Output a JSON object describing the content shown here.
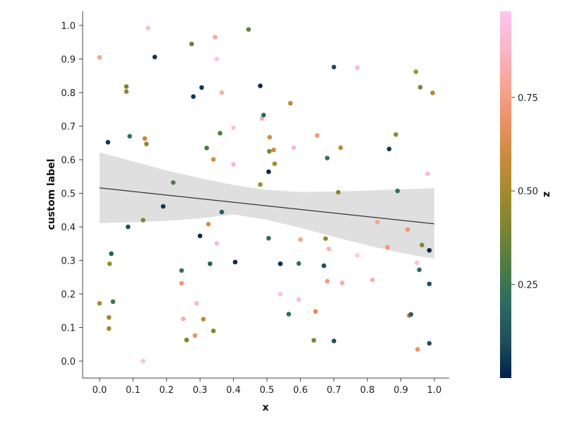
{
  "chart_data": {
    "type": "scatter",
    "xlabel": "x",
    "ylabel": "custom label",
    "xlim": [
      -0.05,
      1.05
    ],
    "ylim": [
      -0.05,
      1.04
    ],
    "xticks": [
      "0.0",
      "0.1",
      "0.2",
      "0.3",
      "0.4",
      "0.5",
      "0.6",
      "0.7",
      "0.8",
      "0.9",
      "1.0"
    ],
    "yticks": [
      "0.0",
      "0.1",
      "0.2",
      "0.3",
      "0.4",
      "0.5",
      "0.6",
      "0.7",
      "0.8",
      "0.9",
      "1.0"
    ],
    "colorbar": {
      "label": "z",
      "range": [
        0.0,
        0.98
      ],
      "ticks": [
        "0.25",
        "0.50",
        "0.75"
      ],
      "tick_values": [
        0.25,
        0.5,
        0.75
      ],
      "colormap": [
        "#00204c",
        "#1f4e5a",
        "#2c6a62",
        "#4b7b45",
        "#7a8334",
        "#9f8b2e",
        "#c88a3c",
        "#ec9166",
        "#f6a596",
        "#f9b7c6",
        "#fcc6f0"
      ]
    },
    "regression": {
      "line": [
        [
          0.0,
          0.516
        ],
        [
          1.0,
          0.409
        ]
      ],
      "ci_upper": [
        [
          0.0,
          0.622
        ],
        [
          0.1,
          0.595
        ],
        [
          0.2,
          0.568
        ],
        [
          0.3,
          0.545
        ],
        [
          0.4,
          0.525
        ],
        [
          0.5,
          0.51
        ],
        [
          0.6,
          0.504
        ],
        [
          0.7,
          0.505
        ],
        [
          0.8,
          0.508
        ],
        [
          0.9,
          0.512
        ],
        [
          1.0,
          0.515
        ]
      ],
      "ci_lower": [
        [
          0.0,
          0.411
        ],
        [
          0.1,
          0.414
        ],
        [
          0.2,
          0.418
        ],
        [
          0.3,
          0.425
        ],
        [
          0.4,
          0.437
        ],
        [
          0.5,
          0.421
        ],
        [
          0.6,
          0.397
        ],
        [
          0.7,
          0.37
        ],
        [
          0.8,
          0.345
        ],
        [
          0.9,
          0.323
        ],
        [
          1.0,
          0.305
        ]
      ]
    },
    "points": [
      [
        0.0,
        0.905,
        0.78
      ],
      [
        0.0,
        0.172,
        0.5
      ],
      [
        0.025,
        0.652,
        0.05
      ],
      [
        0.028,
        0.13,
        0.48
      ],
      [
        0.028,
        0.097,
        0.48
      ],
      [
        0.03,
        0.29,
        0.48
      ],
      [
        0.035,
        0.32,
        0.15
      ],
      [
        0.04,
        0.177,
        0.25
      ],
      [
        0.08,
        0.818,
        0.4
      ],
      [
        0.08,
        0.803,
        0.45
      ],
      [
        0.085,
        0.4,
        0.1
      ],
      [
        0.09,
        0.67,
        0.22
      ],
      [
        0.13,
        0.42,
        0.42
      ],
      [
        0.13,
        0.0,
        0.95
      ],
      [
        0.135,
        0.663,
        0.58
      ],
      [
        0.14,
        0.647,
        0.45
      ],
      [
        0.145,
        0.992,
        0.92
      ],
      [
        0.165,
        0.906,
        0.05
      ],
      [
        0.19,
        0.461,
        0.05
      ],
      [
        0.22,
        0.532,
        0.3
      ],
      [
        0.245,
        0.27,
        0.25
      ],
      [
        0.245,
        0.232,
        0.72
      ],
      [
        0.25,
        0.126,
        0.83
      ],
      [
        0.26,
        0.063,
        0.4
      ],
      [
        0.275,
        0.945,
        0.35
      ],
      [
        0.28,
        0.788,
        0.05
      ],
      [
        0.285,
        0.076,
        0.68
      ],
      [
        0.29,
        0.172,
        0.88
      ],
      [
        0.3,
        0.373,
        0.02
      ],
      [
        0.305,
        0.815,
        0.05
      ],
      [
        0.31,
        0.125,
        0.55
      ],
      [
        0.32,
        0.635,
        0.28
      ],
      [
        0.325,
        0.408,
        0.62
      ],
      [
        0.33,
        0.29,
        0.15
      ],
      [
        0.34,
        0.09,
        0.42
      ],
      [
        0.34,
        0.601,
        0.62
      ],
      [
        0.345,
        0.965,
        0.8
      ],
      [
        0.35,
        0.9,
        0.96
      ],
      [
        0.35,
        0.351,
        0.9
      ],
      [
        0.36,
        0.679,
        0.3
      ],
      [
        0.365,
        0.444,
        0.15
      ],
      [
        0.365,
        0.8,
        0.83
      ],
      [
        0.4,
        0.695,
        0.95
      ],
      [
        0.4,
        0.586,
        0.88
      ],
      [
        0.405,
        0.295,
        0.02
      ],
      [
        0.445,
        0.988,
        0.35
      ],
      [
        0.48,
        0.82,
        0.02
      ],
      [
        0.48,
        0.526,
        0.5
      ],
      [
        0.485,
        0.723,
        0.84
      ],
      [
        0.49,
        0.733,
        0.2
      ],
      [
        0.505,
        0.366,
        0.2
      ],
      [
        0.505,
        0.564,
        0.02
      ],
      [
        0.507,
        0.625,
        0.4
      ],
      [
        0.508,
        0.667,
        0.62
      ],
      [
        0.52,
        0.629,
        0.6
      ],
      [
        0.523,
        0.588,
        0.5
      ],
      [
        0.54,
        0.29,
        0.02
      ],
      [
        0.54,
        0.2,
        0.95
      ],
      [
        0.565,
        0.14,
        0.2
      ],
      [
        0.57,
        0.768,
        0.55
      ],
      [
        0.58,
        0.636,
        0.88
      ],
      [
        0.595,
        0.291,
        0.22
      ],
      [
        0.595,
        0.183,
        0.9
      ],
      [
        0.6,
        0.362,
        0.78
      ],
      [
        0.64,
        0.062,
        0.4
      ],
      [
        0.645,
        0.148,
        0.65
      ],
      [
        0.65,
        0.672,
        0.72
      ],
      [
        0.67,
        0.284,
        0.1
      ],
      [
        0.675,
        0.365,
        0.45
      ],
      [
        0.68,
        0.605,
        0.25
      ],
      [
        0.68,
        0.238,
        0.75
      ],
      [
        0.685,
        0.334,
        0.85
      ],
      [
        0.7,
        0.06,
        0.1
      ],
      [
        0.7,
        0.876,
        0.1
      ],
      [
        0.713,
        0.503,
        0.45
      ],
      [
        0.72,
        0.636,
        0.55
      ],
      [
        0.725,
        0.233,
        0.82
      ],
      [
        0.77,
        0.874,
        0.9
      ],
      [
        0.77,
        0.315,
        0.98
      ],
      [
        0.815,
        0.242,
        0.85
      ],
      [
        0.83,
        0.414,
        0.77
      ],
      [
        0.86,
        0.339,
        0.72
      ],
      [
        0.865,
        0.632,
        0.05
      ],
      [
        0.885,
        0.675,
        0.45
      ],
      [
        0.89,
        0.507,
        0.22
      ],
      [
        0.92,
        0.392,
        0.72
      ],
      [
        0.925,
        0.136,
        0.58
      ],
      [
        0.93,
        0.139,
        0.15
      ],
      [
        0.945,
        0.862,
        0.52
      ],
      [
        0.948,
        0.293,
        0.95
      ],
      [
        0.95,
        0.035,
        0.7
      ],
      [
        0.955,
        0.272,
        0.2
      ],
      [
        0.958,
        0.816,
        0.4
      ],
      [
        0.963,
        0.346,
        0.42
      ],
      [
        0.98,
        0.558,
        0.9
      ],
      [
        0.985,
        0.23,
        0.1
      ],
      [
        0.985,
        0.33,
        0.02
      ],
      [
        0.985,
        0.053,
        0.1
      ],
      [
        0.995,
        0.799,
        0.52
      ]
    ]
  }
}
